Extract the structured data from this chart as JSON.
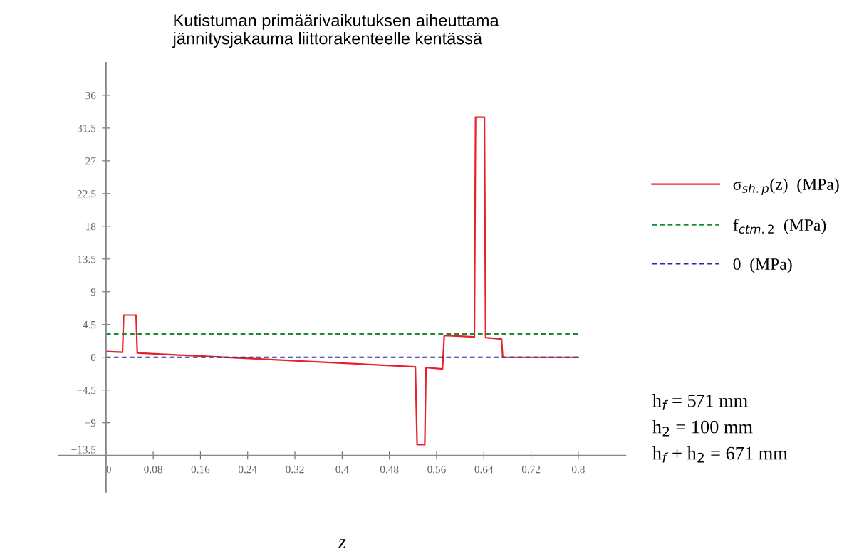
{
  "chart_data": {
    "type": "line",
    "title": "Kutistuman primäärivaikutuksen aiheuttama\njännitysjakauma liittorakenteelle kentässä",
    "xlabel": "z",
    "series": [
      {
        "name": "σ$_{sh.p}$(z)  (MPa)",
        "color": "#e8202a",
        "line_style": "solid",
        "x": [
          0,
          0.028,
          0.03,
          0.051,
          0.053,
          0.524,
          0.527,
          0.54,
          0.542,
          0.57,
          0.573,
          0.624,
          0.626,
          0.641,
          0.643,
          0.67,
          0.672,
          0.8
        ],
        "values": [
          0.8,
          0.7,
          5.8,
          5.8,
          0.6,
          -1.3,
          -12,
          -12,
          -1.4,
          -1.6,
          3,
          2.8,
          33,
          33,
          2.7,
          2.5,
          0,
          0
        ]
      },
      {
        "name": "f$_{ctm.2}$  (MPa)",
        "color": "#1a8a3a",
        "line_style": "dashed",
        "x": [
          0,
          0.8
        ],
        "values": [
          3.2,
          3.2
        ]
      },
      {
        "name": "0  (MPa)",
        "color": "#2a2a9a",
        "line_style": "dashed",
        "x": [
          0,
          0.8
        ],
        "values": [
          0,
          0
        ]
      }
    ],
    "xlim": [
      -0.08,
      0.88
    ],
    "ylim": [
      -18.5,
      40.5
    ],
    "xticks": [
      0,
      0.08,
      0.16,
      0.24,
      0.32,
      0.4,
      0.48,
      0.56,
      0.64,
      0.72,
      0.8
    ],
    "yticks": [
      {
        "value": -13.5,
        "label": "−13.5"
      },
      {
        "value": -9,
        "label": "−9"
      },
      {
        "value": -4.5,
        "label": "−4.5"
      },
      0,
      4.5,
      9,
      13.5,
      18,
      22.5,
      27,
      31.5,
      36
    ],
    "legend": "right",
    "grid": false,
    "marker": "none",
    "annotations": [
      "h$_{f}$ = 571 mm",
      "h$_{2}$ = 100 mm",
      "h$_{f}$ + h$_{2}$ = 671 mm"
    ]
  }
}
